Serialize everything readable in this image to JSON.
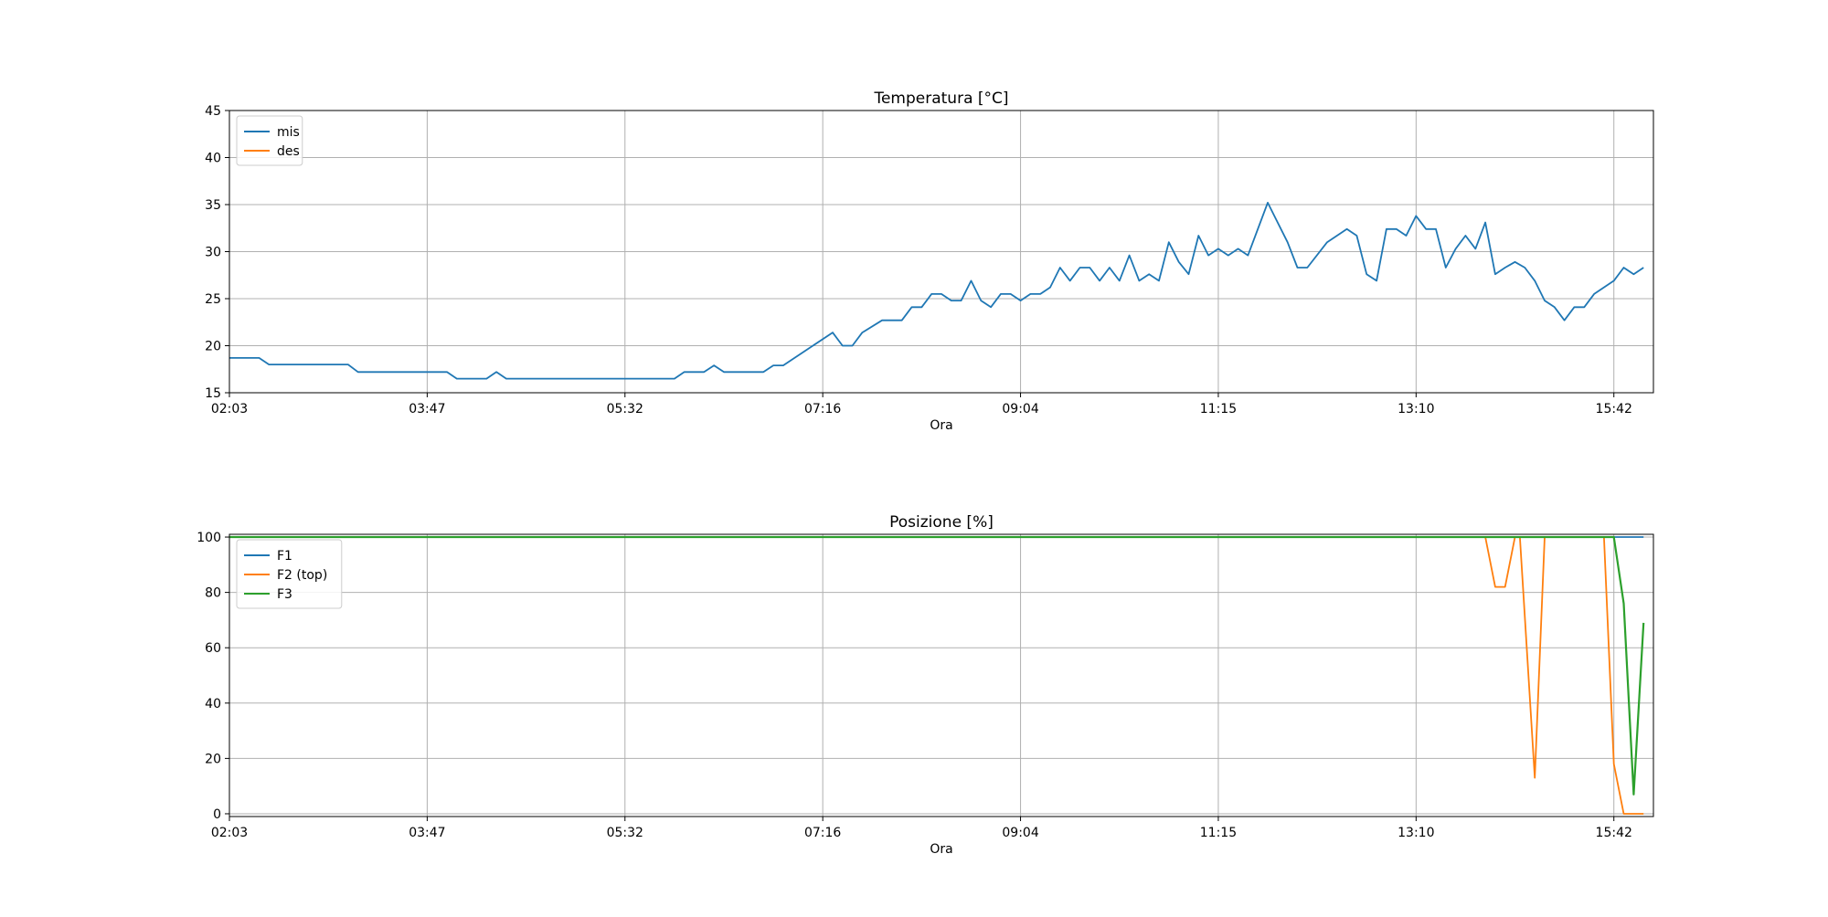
{
  "chart_data": [
    {
      "type": "line",
      "title": "Temperatura [°C]",
      "xlabel": "Ora",
      "ylabel": "",
      "xlim": [
        0,
        144
      ],
      "ylim": [
        15,
        45
      ],
      "yticks": [
        15,
        20,
        25,
        30,
        35,
        40,
        45
      ],
      "xticks": [
        {
          "at": 0,
          "label": "02:03"
        },
        {
          "at": 20,
          "label": "03:47"
        },
        {
          "at": 40,
          "label": "05:32"
        },
        {
          "at": 60,
          "label": "07:16"
        },
        {
          "at": 80,
          "label": "09:04"
        },
        {
          "at": 100,
          "label": "11:15"
        },
        {
          "at": 120,
          "label": "13:10"
        },
        {
          "at": 140,
          "label": "15:42"
        }
      ],
      "grid": true,
      "legend_position": "top-left",
      "series": [
        {
          "name": "mis",
          "color": "#1f77b4",
          "points": [
            [
              0,
              18.7
            ],
            [
              3,
              18.7
            ],
            [
              4,
              18
            ],
            [
              12,
              18
            ],
            [
              13,
              17.2
            ],
            [
              22,
              17.2
            ],
            [
              23,
              16.5
            ],
            [
              26,
              16.5
            ],
            [
              27,
              17.2
            ],
            [
              28,
              16.5
            ],
            [
              45,
              16.5
            ],
            [
              46,
              17.2
            ],
            [
              48,
              17.2
            ],
            [
              49,
              17.9
            ],
            [
              50,
              17.2
            ],
            [
              54,
              17.2
            ],
            [
              55,
              17.9
            ],
            [
              56,
              17.9
            ],
            [
              61,
              21.4
            ],
            [
              62,
              20
            ],
            [
              63,
              20
            ],
            [
              64,
              21.4
            ],
            [
              66,
              22.7
            ],
            [
              68,
              22.7
            ],
            [
              69,
              24.1
            ],
            [
              70,
              24.1
            ],
            [
              71,
              25.5
            ],
            [
              72,
              25.5
            ],
            [
              73,
              24.8
            ],
            [
              74,
              24.8
            ],
            [
              75,
              26.9
            ],
            [
              76,
              24.8
            ],
            [
              77,
              24.1
            ],
            [
              78,
              25.5
            ],
            [
              79,
              25.5
            ],
            [
              80,
              24.8
            ],
            [
              81,
              25.5
            ],
            [
              82,
              25.5
            ],
            [
              83,
              26.2
            ],
            [
              84,
              28.3
            ],
            [
              85,
              26.9
            ],
            [
              86,
              28.3
            ],
            [
              87,
              28.3
            ],
            [
              88,
              26.9
            ],
            [
              89,
              28.3
            ],
            [
              90,
              26.9
            ],
            [
              91,
              29.6
            ],
            [
              92,
              26.9
            ],
            [
              93,
              27.6
            ],
            [
              94,
              26.9
            ],
            [
              95,
              31
            ],
            [
              96,
              28.9
            ],
            [
              97,
              27.6
            ],
            [
              98,
              31.7
            ],
            [
              99,
              29.6
            ],
            [
              100,
              30.3
            ],
            [
              101,
              29.6
            ],
            [
              102,
              30.3
            ],
            [
              103,
              29.6
            ],
            [
              105,
              35.2
            ],
            [
              107,
              31
            ],
            [
              108,
              28.3
            ],
            [
              109,
              28.3
            ],
            [
              111,
              31
            ],
            [
              113,
              32.4
            ],
            [
              114,
              31.7
            ],
            [
              115,
              27.6
            ],
            [
              116,
              26.9
            ],
            [
              117,
              32.4
            ],
            [
              118,
              32.4
            ],
            [
              119,
              31.7
            ],
            [
              120,
              33.8
            ],
            [
              121,
              32.4
            ],
            [
              122,
              32.4
            ],
            [
              123,
              28.3
            ],
            [
              124,
              30.3
            ],
            [
              125,
              31.7
            ],
            [
              126,
              30.3
            ],
            [
              127,
              33.1
            ],
            [
              128,
              27.6
            ],
            [
              129,
              28.3
            ],
            [
              130,
              28.9
            ],
            [
              131,
              28.3
            ],
            [
              132,
              26.9
            ],
            [
              133,
              24.8
            ],
            [
              134,
              24.1
            ],
            [
              135,
              22.7
            ],
            [
              136,
              24.1
            ],
            [
              137,
              24.1
            ],
            [
              138,
              25.5
            ],
            [
              140,
              26.9
            ],
            [
              141,
              28.3
            ],
            [
              142,
              27.6
            ],
            [
              143,
              28.3
            ]
          ]
        },
        {
          "name": "des",
          "color": "#ff7f0e",
          "points": []
        }
      ]
    },
    {
      "type": "line",
      "title": "Posizione [%]",
      "xlabel": "Ora",
      "ylabel": "",
      "xlim": [
        0,
        144
      ],
      "ylim": [
        -1,
        101
      ],
      "yticks": [
        0,
        20,
        40,
        60,
        80,
        100
      ],
      "xticks": [
        {
          "at": 0,
          "label": "02:03"
        },
        {
          "at": 20,
          "label": "03:47"
        },
        {
          "at": 40,
          "label": "05:32"
        },
        {
          "at": 60,
          "label": "07:16"
        },
        {
          "at": 80,
          "label": "09:04"
        },
        {
          "at": 100,
          "label": "11:15"
        },
        {
          "at": 120,
          "label": "13:10"
        },
        {
          "at": 140,
          "label": "15:42"
        }
      ],
      "grid": true,
      "legend_position": "top-left",
      "series": [
        {
          "name": "F1",
          "color": "#1f77b4",
          "points": [
            [
              0,
              100
            ],
            [
              143,
              100
            ]
          ]
        },
        {
          "name": "F2 (top)",
          "color": "#ff7f0e",
          "points": [
            [
              0,
              100
            ],
            [
              127,
              100
            ],
            [
              128,
              82
            ],
            [
              129,
              82
            ],
            [
              130,
              100
            ],
            [
              130.5,
              100
            ],
            [
              132,
              13
            ],
            [
              133,
              100
            ],
            [
              139,
              100
            ],
            [
              140,
              18
            ],
            [
              141,
              0
            ],
            [
              143,
              0
            ]
          ]
        },
        {
          "name": "F3",
          "color": "#2ca02c",
          "points": [
            [
              0,
              100
            ],
            [
              140,
              100
            ],
            [
              141,
              76
            ],
            [
              142,
              7
            ],
            [
              143,
              69
            ]
          ]
        }
      ]
    }
  ]
}
